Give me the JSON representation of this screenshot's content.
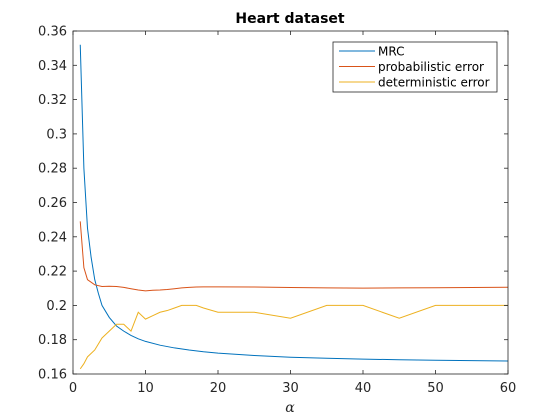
{
  "chart_data": {
    "type": "line",
    "title": "Heart dataset",
    "xlabel": "α",
    "ylabel": "",
    "xlim": [
      0,
      60
    ],
    "ylim": [
      0.16,
      0.36
    ],
    "xticks": [
      0,
      10,
      20,
      30,
      40,
      50,
      60
    ],
    "yticks": [
      0.16,
      0.18,
      0.2,
      0.22,
      0.24,
      0.26,
      0.28,
      0.3,
      0.32,
      0.34,
      0.36
    ],
    "xtick_labels": [
      "0",
      "10",
      "20",
      "30",
      "40",
      "50",
      "60"
    ],
    "ytick_labels": [
      "0.16",
      "0.18",
      "0.2",
      "0.22",
      "0.24",
      "0.26",
      "0.28",
      "0.3",
      "0.32",
      "0.34",
      "0.36"
    ],
    "grid": false,
    "legend_position": "top-right",
    "series": [
      {
        "name": "MRC",
        "color": "#0072BD",
        "x": [
          1,
          1.5,
          2,
          2.5,
          3,
          3.5,
          4,
          5,
          6,
          7,
          8,
          9,
          10,
          12,
          14,
          16,
          18,
          20,
          25,
          30,
          35,
          40,
          45,
          50,
          55,
          60
        ],
        "y": [
          0.352,
          0.28,
          0.245,
          0.228,
          0.215,
          0.207,
          0.2,
          0.193,
          0.188,
          0.185,
          0.1825,
          0.1805,
          0.179,
          0.1768,
          0.1752,
          0.174,
          0.173,
          0.1722,
          0.1708,
          0.1698,
          0.1692,
          0.1687,
          0.1683,
          0.168,
          0.1678,
          0.1676
        ]
      },
      {
        "name": "probabilistic error",
        "color": "#D95319",
        "x": [
          1,
          1.5,
          2,
          3,
          4,
          5,
          6,
          7,
          8,
          9,
          10,
          11,
          12,
          13,
          14,
          15,
          16,
          17,
          18,
          20,
          25,
          30,
          35,
          40,
          45,
          50,
          55,
          60
        ],
        "y": [
          0.249,
          0.222,
          0.215,
          0.212,
          0.211,
          0.2112,
          0.211,
          0.2105,
          0.2097,
          0.209,
          0.2085,
          0.2088,
          0.209,
          0.2093,
          0.2097,
          0.2102,
          0.2105,
          0.2107,
          0.2108,
          0.2108,
          0.2107,
          0.2104,
          0.2102,
          0.2101,
          0.2102,
          0.2103,
          0.2104,
          0.2106
        ]
      },
      {
        "name": "deterministic error",
        "color": "#EDB120",
        "x": [
          1,
          1.5,
          2,
          3,
          4,
          5,
          6,
          7,
          8,
          9,
          10,
          11,
          12,
          13,
          14,
          15,
          16,
          17,
          18,
          20,
          25,
          30,
          35,
          40,
          45,
          50,
          55,
          60
        ],
        "y": [
          0.163,
          0.166,
          0.17,
          0.174,
          0.181,
          0.185,
          0.189,
          0.189,
          0.185,
          0.196,
          0.192,
          0.194,
          0.196,
          0.197,
          0.1985,
          0.2,
          0.2,
          0.2,
          0.1985,
          0.196,
          0.196,
          0.1925,
          0.2,
          0.2,
          0.1925,
          0.2,
          0.2,
          0.2
        ]
      }
    ]
  }
}
